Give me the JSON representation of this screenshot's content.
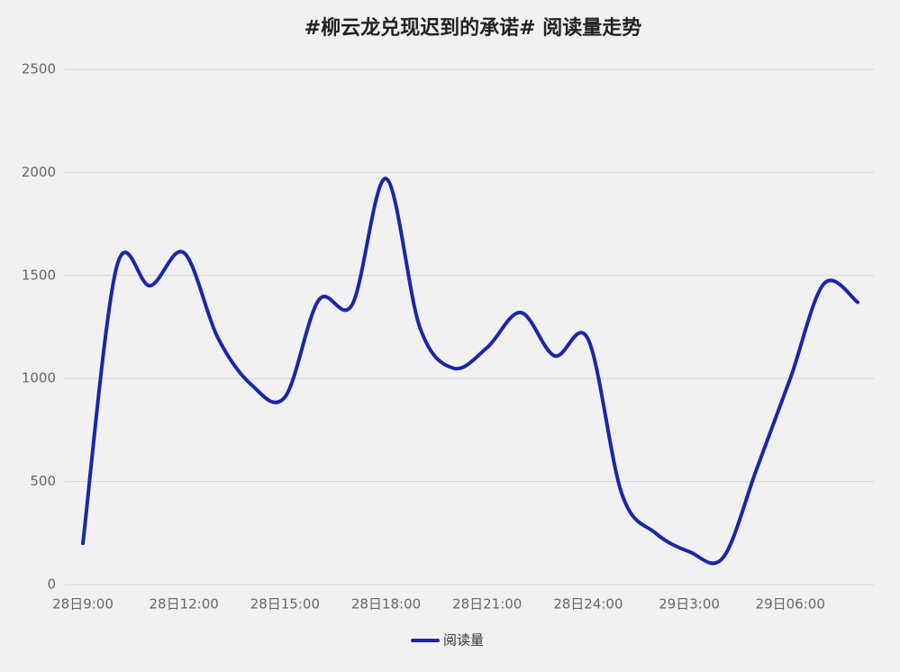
{
  "chart_data": {
    "type": "line",
    "title": "#柳云龙兑现迟到的承诺# 阅读量走势",
    "categories": [
      "28日9:00",
      null,
      null,
      "28日12:00",
      null,
      null,
      "28日15:00",
      null,
      null,
      "28日18:00",
      null,
      null,
      "28日21:00",
      null,
      null,
      "28日24:00",
      null,
      null,
      "29日3:00",
      null,
      null,
      "29日06:00",
      null,
      null
    ],
    "series": [
      {
        "name": "阅读量",
        "color": "#1a27a8",
        "values": [
          200,
          1540,
          1450,
          1610,
          1200,
          970,
          910,
          1380,
          1360,
          1970,
          1250,
          1050,
          1150,
          1320,
          1110,
          1190,
          440,
          250,
          160,
          130,
          560,
          1000,
          1460,
          1370
        ]
      }
    ],
    "ylim": [
      0,
      2500
    ],
    "yticks": [
      0,
      500,
      1000,
      1500,
      2000,
      2500
    ],
    "grid": true,
    "legend": "bottom"
  }
}
